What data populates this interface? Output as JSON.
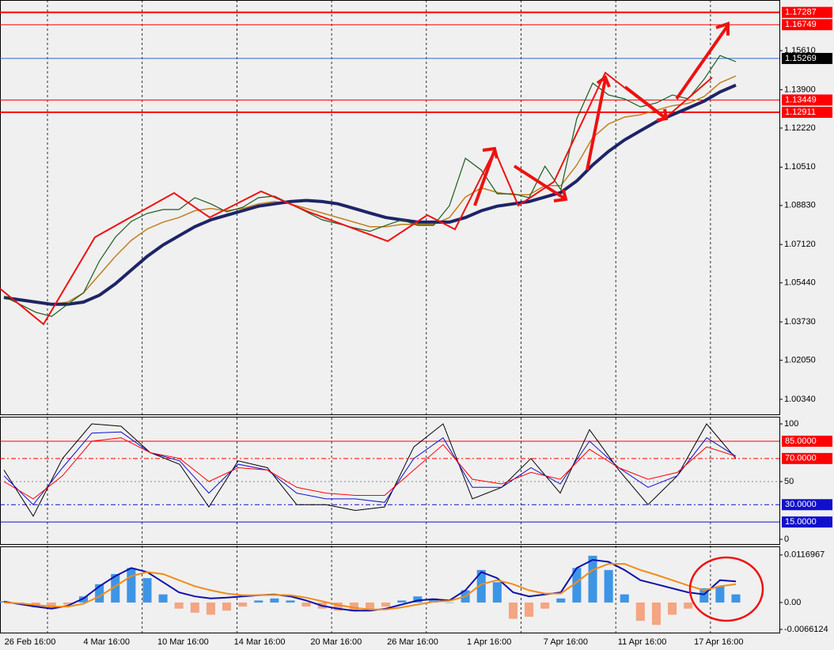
{
  "chart_data": [
    {
      "type": "line",
      "ylim": [
        0.9968,
        1.1783
      ],
      "yticks": [
        {
          "value": 1.1561,
          "label": "1.15610"
        },
        {
          "value": 1.139,
          "label": "1.13900"
        },
        {
          "value": 1.1222,
          "label": "1.12220"
        },
        {
          "value": 1.1051,
          "label": "1.10510"
        },
        {
          "value": 1.0883,
          "label": "1.08830"
        },
        {
          "value": 1.0712,
          "label": "1.07120"
        },
        {
          "value": 1.0544,
          "label": "1.05440"
        },
        {
          "value": 1.0373,
          "label": "1.03730"
        },
        {
          "value": 1.0205,
          "label": "1.02050"
        },
        {
          "value": 1.0034,
          "label": "1.00340"
        }
      ],
      "levels": [
        {
          "value": 1.17287,
          "color": "#ff0000",
          "width": 2
        },
        {
          "value": 1.16749,
          "color": "#ff0000",
          "width": 1
        },
        {
          "value": 1.15269,
          "color": "#3366cc",
          "width": 1,
          "box": "#000000"
        },
        {
          "value": 1.13449,
          "color": "#ff0000",
          "width": 1
        },
        {
          "value": 1.12911,
          "color": "#ff0000",
          "width": 2
        }
      ],
      "series": [
        {
          "color": "#c08020",
          "width": 1.5,
          "values": [
            1.048,
            1.047,
            1.046,
            1.045,
            1.046,
            1.05,
            1.058,
            1.066,
            1.073,
            1.078,
            1.081,
            1.083,
            1.086,
            1.087,
            1.086,
            1.087,
            1.089,
            1.09,
            1.089,
            1.087,
            1.085,
            1.083,
            1.081,
            1.079,
            1.079,
            1.08,
            1.08,
            1.08,
            1.083,
            1.092,
            1.096,
            1.094,
            1.093,
            1.093,
            1.097,
            1.097,
            1.106,
            1.118,
            1.124,
            1.127,
            1.128,
            1.13,
            1.132,
            1.133,
            1.136,
            1.142,
            1.145
          ]
        },
        {
          "color": "#1e2466",
          "width": 4,
          "values": [
            1.048,
            1.047,
            1.046,
            1.045,
            1.045,
            1.046,
            1.049,
            1.054,
            1.06,
            1.066,
            1.071,
            1.075,
            1.079,
            1.082,
            1.084,
            1.086,
            1.088,
            1.089,
            1.09,
            1.0905,
            1.09,
            1.089,
            1.087,
            1.085,
            1.083,
            1.082,
            1.081,
            1.081,
            1.081,
            1.083,
            1.086,
            1.088,
            1.089,
            1.09,
            1.092,
            1.094,
            1.099,
            1.106,
            1.112,
            1.117,
            1.121,
            1.125,
            1.128,
            1.131,
            1.134,
            1.138,
            1.141
          ]
        },
        {
          "color": "#1a5c1a",
          "width": 1.2,
          "values": [
            1.0484,
            1.045,
            1.0415,
            1.0397,
            1.045,
            1.05,
            1.064,
            1.0744,
            1.0813,
            1.0848,
            1.0865,
            1.0865,
            1.0917,
            1.089,
            1.0855,
            1.0875,
            1.0917,
            1.0924,
            1.089,
            1.0855,
            1.082,
            1.0803,
            1.0785,
            1.077,
            1.0796,
            1.082,
            1.0796,
            1.0796,
            1.0882,
            1.109,
            1.1038,
            1.0934,
            1.0934,
            1.0917,
            1.1055,
            1.0952,
            1.1263,
            1.1419,
            1.1367,
            1.135,
            1.1315,
            1.1332,
            1.1367,
            1.135,
            1.1436,
            1.154,
            1.1513
          ]
        }
      ]
    },
    {
      "type": "line",
      "ylim": [
        -4.1,
        106.2
      ],
      "yticks": [
        100,
        50,
        0
      ],
      "levels": [
        {
          "value": 85,
          "label": "85.0000",
          "color": "#ff0000",
          "dash": "none"
        },
        {
          "value": 70,
          "label": "70.0000",
          "color": "#ff0000",
          "dash": "6 3 2 3"
        },
        {
          "value": 30,
          "label": "30.0000",
          "color": "#1010cc",
          "dash": "6 3 2 3"
        },
        {
          "value": 15,
          "label": "15.0000",
          "color": "#1010cc",
          "dash": "none"
        }
      ],
      "series": [
        {
          "color": "#000000",
          "width": 1,
          "values": [
            60,
            20,
            70,
            100,
            98,
            75,
            65,
            28,
            68,
            62,
            30,
            30,
            25,
            28,
            80,
            100,
            35,
            45,
            70,
            40,
            95,
            60,
            30,
            55,
            100,
            70
          ]
        },
        {
          "color": "#1010cc",
          "width": 1,
          "values": [
            55,
            30,
            62,
            92,
            93,
            75,
            68,
            40,
            65,
            60,
            40,
            35,
            35,
            32,
            70,
            88,
            45,
            45,
            62,
            48,
            85,
            62,
            45,
            55,
            88,
            72
          ]
        },
        {
          "color": "#ff0000",
          "width": 1,
          "values": [
            50,
            35,
            55,
            85,
            88,
            75,
            70,
            50,
            62,
            60,
            45,
            40,
            38,
            38,
            60,
            82,
            52,
            48,
            58,
            52,
            78,
            62,
            52,
            58,
            80,
            72
          ]
        }
      ]
    },
    {
      "type": "histogram",
      "ylim": [
        -0.0074,
        0.0138
      ],
      "yticks": [
        0.0116967,
        {
          "value": 0,
          "label": "0.00"
        },
        -0.0066124
      ],
      "pos_color": "#3d95e6",
      "neg_color": "#f4a582",
      "values": [
        0.0003,
        -0.0005,
        -0.0012,
        -0.0015,
        -0.0005,
        0.0015,
        0.0045,
        0.007,
        0.0085,
        0.006,
        0.002,
        -0.0015,
        -0.0025,
        -0.003,
        -0.002,
        -0.001,
        0.0005,
        0.001,
        0.0005,
        -0.001,
        -0.0015,
        -0.002,
        -0.0022,
        -0.002,
        -0.001,
        0.0005,
        0.0015,
        0.001,
        0,
        0.003,
        0.008,
        0.005,
        -0.004,
        -0.0035,
        -0.0015,
        0.001,
        0.0085,
        0.0115,
        0.008,
        0.002,
        -0.0045,
        -0.0055,
        -0.003,
        -0.0015,
        0.0035,
        0.004,
        0.002
      ],
      "series": [
        {
          "color": "#1010aa",
          "width": 2,
          "values": [
            0.0002,
            -0.0004,
            -0.001,
            -0.0015,
            -0.0008,
            0.001,
            0.004,
            0.0065,
            0.0085,
            0.0075,
            0.005,
            0.0025,
            0.0015,
            0.001,
            0.0012,
            0.0015,
            0.0018,
            0.002,
            0.0015,
            0.0005,
            -0.0008,
            -0.0015,
            -0.002,
            -0.002,
            -0.0015,
            -0.0005,
            0.0005,
            0.0008,
            0.0005,
            0.003,
            0.0075,
            0.006,
            0.0025,
            0.0015,
            0.002,
            0.0025,
            0.0085,
            0.0105,
            0.01,
            0.008,
            0.0055,
            0.0045,
            0.0035,
            0.0025,
            0.002,
            0.0055,
            0.0052
          ]
        },
        {
          "color": "#f08c1a",
          "width": 2,
          "values": [
            0,
            -0.0002,
            -0.0006,
            -0.001,
            -0.001,
            -0.0003,
            0.0015,
            0.004,
            0.0065,
            0.0075,
            0.007,
            0.0055,
            0.004,
            0.003,
            0.0022,
            0.0018,
            0.0018,
            0.0019,
            0.0018,
            0.0012,
            0.0003,
            -0.0006,
            -0.0013,
            -0.0017,
            -0.0017,
            -0.0012,
            -0.0005,
            0.0002,
            0.0004,
            0.0015,
            0.0045,
            0.0055,
            0.0045,
            0.003,
            0.0022,
            0.0022,
            0.005,
            0.008,
            0.0095,
            0.0095,
            0.008,
            0.0068,
            0.0055,
            0.0042,
            0.003,
            0.004,
            0.0045
          ]
        }
      ]
    }
  ],
  "time_labels": [
    "26 Feb 16:00",
    "4 Mar 16:00",
    "10 Mar 16:00",
    "14 Mar 16:00",
    "20 Mar 16:00",
    "26 Mar 16:00",
    "1 Apr 16:00",
    "7 Apr 16:00",
    "11 Apr 16:00",
    "17 Apr 16:00"
  ]
}
